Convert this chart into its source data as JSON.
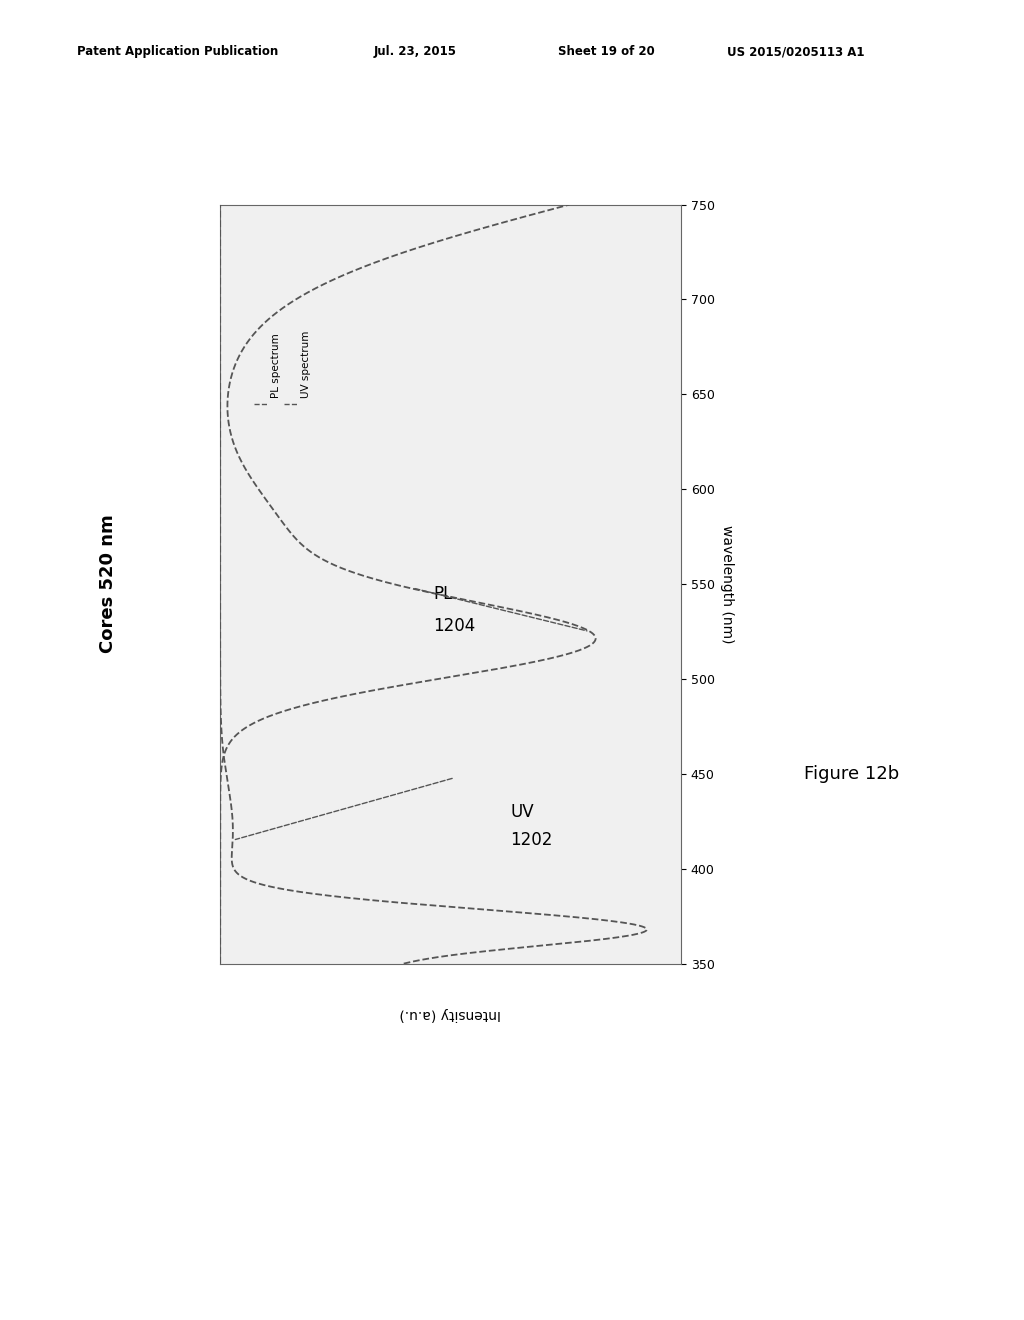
{
  "title": "Cores 520 nm",
  "xlabel": "wavelength (nm)",
  "ylabel": "Intensity (a.u.)",
  "figure_label": "Figure 12b",
  "patent_header": "Patent Application Publication",
  "patent_date": "Jul. 23, 2015",
  "patent_sheet": "Sheet 19 of 20",
  "patent_number": "US 2015/0205113 A1",
  "wavelength_min": 350,
  "wavelength_max": 750,
  "uv_label_line1": "UV",
  "uv_label_line2": "1202",
  "pl_label_line1": "PL",
  "pl_label_line2": "1204",
  "legend_pl": "PL spectrum",
  "legend_uv": "UV spectrum",
  "bg_color": "#ffffff",
  "line_color": "#555555",
  "plot_bg": "#f0f0f0",
  "tick_values": [
    350,
    400,
    450,
    500,
    550,
    600,
    650,
    700,
    750
  ]
}
